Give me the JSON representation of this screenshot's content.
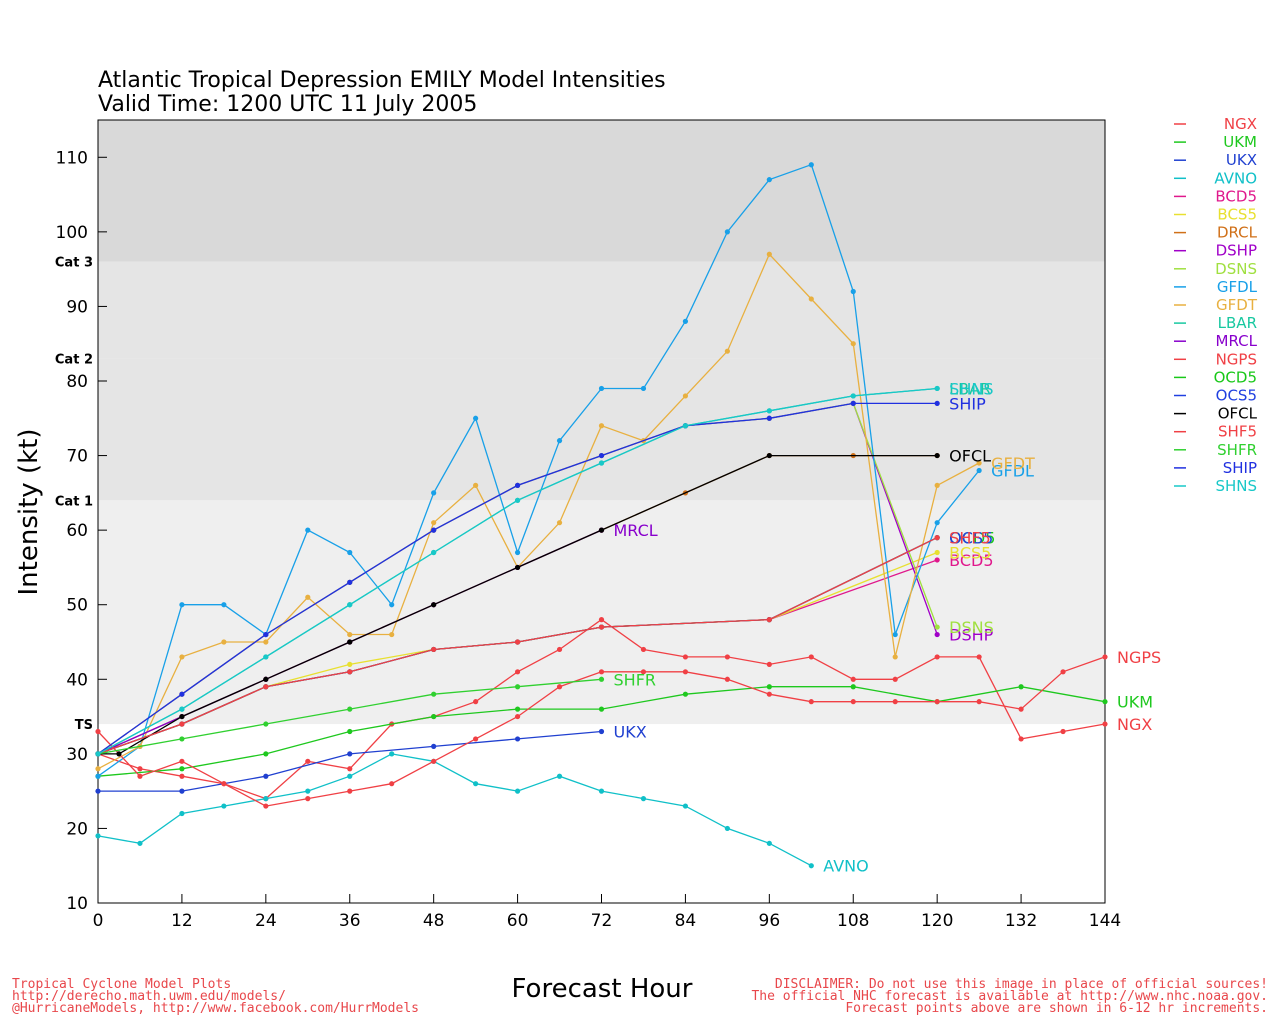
{
  "chart_data": {
    "type": "line",
    "title": "Atlantic Tropical Depression EMILY Model Intensities",
    "subtitle": "Valid Time: 1200 UTC 11 July 2005",
    "xlabel": "Forecast Hour",
    "ylabel": "Intensity (kt)",
    "xlim": [
      0,
      144
    ],
    "ylim": [
      10,
      115
    ],
    "x_ticks": [
      0,
      12,
      24,
      36,
      48,
      60,
      72,
      84,
      96,
      108,
      120,
      132,
      144
    ],
    "y_ticks": [
      10,
      20,
      30,
      40,
      50,
      60,
      70,
      80,
      90,
      100,
      110
    ],
    "grid": false,
    "legend_placement": "right",
    "category_bands": [
      {
        "label": "TS",
        "from": 34,
        "to": 64,
        "color": "#efefef"
      },
      {
        "label": "Cat 1",
        "from": 64,
        "to": 83,
        "color": "#e5e5e5"
      },
      {
        "label": "Cat 2",
        "from": 83,
        "to": 96,
        "color": "#e5e5e5"
      },
      {
        "label": "Cat 3",
        "from": 96,
        "to": 115,
        "color": "#d9d9d9"
      }
    ],
    "series": [
      {
        "name": "NGX",
        "color": "#f04045",
        "end_label": "NGX",
        "x": [
          0,
          6,
          12,
          18,
          24,
          30,
          36,
          42,
          48,
          54,
          60,
          66,
          72,
          78,
          84,
          90,
          96,
          102,
          108,
          114,
          120,
          126,
          132,
          138,
          144
        ],
        "y": [
          30,
          28,
          27,
          26,
          24,
          29,
          28,
          34,
          35,
          37,
          41,
          44,
          48,
          44,
          43,
          43,
          42,
          43,
          40,
          40,
          43,
          43,
          32,
          33,
          34
        ]
      },
      {
        "name": "UKM",
        "color": "#1ec81e",
        "end_label": "UKM",
        "x": [
          0,
          12,
          24,
          36,
          48,
          60,
          72,
          84,
          96,
          108,
          120,
          132,
          144
        ],
        "y": [
          27,
          28,
          30,
          33,
          35,
          36,
          36,
          38,
          39,
          39,
          37,
          39,
          37
        ]
      },
      {
        "name": "UKX",
        "color": "#2040d0",
        "end_label": "UKX",
        "x": [
          0,
          12,
          24,
          36,
          48,
          60,
          72
        ],
        "y": [
          25,
          25,
          27,
          30,
          31,
          32,
          33
        ]
      },
      {
        "name": "AVNO",
        "color": "#10c0c8",
        "end_label": "AVNO",
        "x": [
          0,
          6,
          12,
          18,
          24,
          30,
          36,
          42,
          48,
          54,
          60,
          66,
          72,
          78,
          84,
          90,
          96,
          102
        ],
        "y": [
          19,
          18,
          22,
          23,
          24,
          25,
          27,
          30,
          29,
          26,
          25,
          27,
          25,
          24,
          23,
          20,
          18,
          15
        ]
      },
      {
        "name": "BCD5",
        "color": "#e0188c",
        "end_label": "BCD5",
        "x": [
          0,
          12,
          24,
          36,
          48,
          60,
          72,
          96,
          120
        ],
        "y": [
          30,
          34,
          39,
          41,
          44,
          45,
          47,
          48,
          56
        ]
      },
      {
        "name": "BCS5",
        "color": "#e8e030",
        "end_label": "BCS5",
        "x": [
          0,
          12,
          24,
          36,
          48,
          60,
          72,
          96,
          120
        ],
        "y": [
          30,
          34,
          39,
          42,
          44,
          45,
          47,
          48,
          57
        ]
      },
      {
        "name": "DRCL",
        "color": "#d07018",
        "end_label": "",
        "x": [
          0,
          12,
          24,
          36,
          48,
          60,
          72,
          84,
          96,
          108,
          120
        ],
        "y": [
          30,
          35,
          40,
          45,
          50,
          55,
          60,
          65,
          70,
          70,
          70
        ]
      },
      {
        "name": "DSHP",
        "color": "#a000c8",
        "end_label": "DSHP",
        "x": [
          0,
          12,
          24,
          36,
          48,
          60,
          72,
          84,
          96,
          108,
          120
        ],
        "y": [
          30,
          38,
          46,
          53,
          60,
          66,
          70,
          74,
          75,
          77,
          46
        ]
      },
      {
        "name": "DSNS",
        "color": "#a0e040",
        "end_label": "DSNS",
        "x": [
          0,
          12,
          24,
          36,
          48,
          60,
          72,
          84,
          96,
          108,
          120
        ],
        "y": [
          30,
          38,
          46,
          53,
          60,
          66,
          70,
          74,
          75,
          77,
          47
        ]
      },
      {
        "name": "GFDL",
        "color": "#18a0e8",
        "end_label": "GFDL",
        "x": [
          0,
          6,
          12,
          18,
          24,
          30,
          36,
          42,
          48,
          54,
          60,
          66,
          72,
          78,
          84,
          90,
          96,
          102,
          108,
          114,
          120,
          126
        ],
        "y": [
          27,
          31,
          50,
          50,
          46,
          60,
          57,
          50,
          65,
          75,
          57,
          72,
          79,
          79,
          88,
          100,
          107,
          109,
          92,
          46,
          61,
          68
        ]
      },
      {
        "name": "GFDT",
        "color": "#e8b040",
        "end_label": "GFDT",
        "x": [
          0,
          6,
          12,
          18,
          24,
          30,
          36,
          42,
          48,
          54,
          60,
          66,
          72,
          78,
          84,
          90,
          96,
          102,
          108,
          114,
          120,
          126
        ],
        "y": [
          28,
          31,
          43,
          45,
          45,
          51,
          46,
          46,
          61,
          66,
          55,
          61,
          74,
          72,
          78,
          84,
          97,
          91,
          85,
          43,
          66,
          69
        ]
      },
      {
        "name": "LBAR",
        "color": "#18c8a0",
        "end_label": "LBAR",
        "x": [
          0,
          12,
          24,
          36,
          48,
          60,
          72,
          84,
          96,
          108,
          120
        ],
        "y": [
          30,
          36,
          43,
          50,
          57,
          64,
          69,
          74,
          76,
          78,
          79
        ]
      },
      {
        "name": "MRCL",
        "color": "#8800cc",
        "end_label": "MRCL",
        "x": [
          0,
          12,
          24,
          36,
          48,
          60,
          72
        ],
        "y": [
          30,
          35,
          40,
          45,
          50,
          55,
          60
        ]
      },
      {
        "name": "NGPS",
        "color": "#f04045",
        "end_label": "NGPS",
        "x": [
          0,
          6,
          12,
          18,
          24,
          30,
          36,
          42,
          48,
          54,
          60,
          66,
          72,
          78,
          84,
          90,
          96,
          102,
          108,
          114,
          120,
          126,
          132,
          138,
          144
        ],
        "y": [
          33,
          27,
          29,
          26,
          23,
          24,
          25,
          26,
          29,
          32,
          35,
          39,
          41,
          41,
          41,
          40,
          38,
          37,
          37,
          37,
          37,
          37,
          36,
          41,
          43
        ]
      },
      {
        "name": "OCD5",
        "color": "#18c818",
        "end_label": "OCD5",
        "x": [
          0,
          12,
          24,
          36,
          48,
          60,
          72,
          96,
          120
        ],
        "y": [
          30,
          34,
          39,
          41,
          44,
          45,
          47,
          48,
          59
        ]
      },
      {
        "name": "OCS5",
        "color": "#2040e0",
        "end_label": "OCS5",
        "x": [
          0,
          12,
          24,
          36,
          48,
          60,
          72,
          96,
          120
        ],
        "y": [
          30,
          34,
          39,
          41,
          44,
          45,
          47,
          48,
          59
        ]
      },
      {
        "name": "OFCL",
        "color": "#000000",
        "end_label": "OFCL",
        "x": [
          0,
          3,
          12,
          24,
          36,
          48,
          60,
          72,
          96,
          120
        ],
        "y": [
          30,
          30,
          35,
          40,
          45,
          50,
          55,
          60,
          70,
          70
        ]
      },
      {
        "name": "SHF5",
        "color": "#f04045",
        "end_label": "SHF5",
        "x": [
          0,
          12,
          24,
          36,
          48,
          60,
          72,
          96,
          120
        ],
        "y": [
          30,
          34,
          39,
          41,
          44,
          45,
          47,
          48,
          59
        ]
      },
      {
        "name": "SHFR",
        "color": "#30d030",
        "end_label": "SHFR",
        "x": [
          0,
          12,
          24,
          36,
          48,
          60,
          72
        ],
        "y": [
          30,
          32,
          34,
          36,
          38,
          39,
          40
        ]
      },
      {
        "name": "SHIP",
        "color": "#2030e0",
        "end_label": "SHIP",
        "x": [
          0,
          12,
          24,
          36,
          48,
          60,
          72,
          84,
          96,
          108,
          120
        ],
        "y": [
          30,
          38,
          46,
          53,
          60,
          66,
          70,
          74,
          75,
          77,
          77
        ]
      },
      {
        "name": "SHNS",
        "color": "#18c8c8",
        "end_label": "SHNS",
        "x": [
          0,
          12,
          24,
          36,
          48,
          60,
          72,
          84,
          96,
          108,
          120
        ],
        "y": [
          30,
          36,
          43,
          50,
          57,
          64,
          69,
          74,
          76,
          78,
          79
        ]
      }
    ]
  },
  "footer": {
    "left_line1": "Tropical Cyclone Model Plots",
    "left_line2": "http://derecho.math.uwm.edu/models/",
    "left_line3": "@HurricaneModels, http://www.facebook.com/HurrModels",
    "right_line1": "DISCLAIMER: Do not use this image in place of official sources!",
    "right_line2": "The official NHC forecast is available at http://www.nhc.noaa.gov.",
    "right_line3": "Forecast points above are shown in 6-12 hr increments."
  }
}
